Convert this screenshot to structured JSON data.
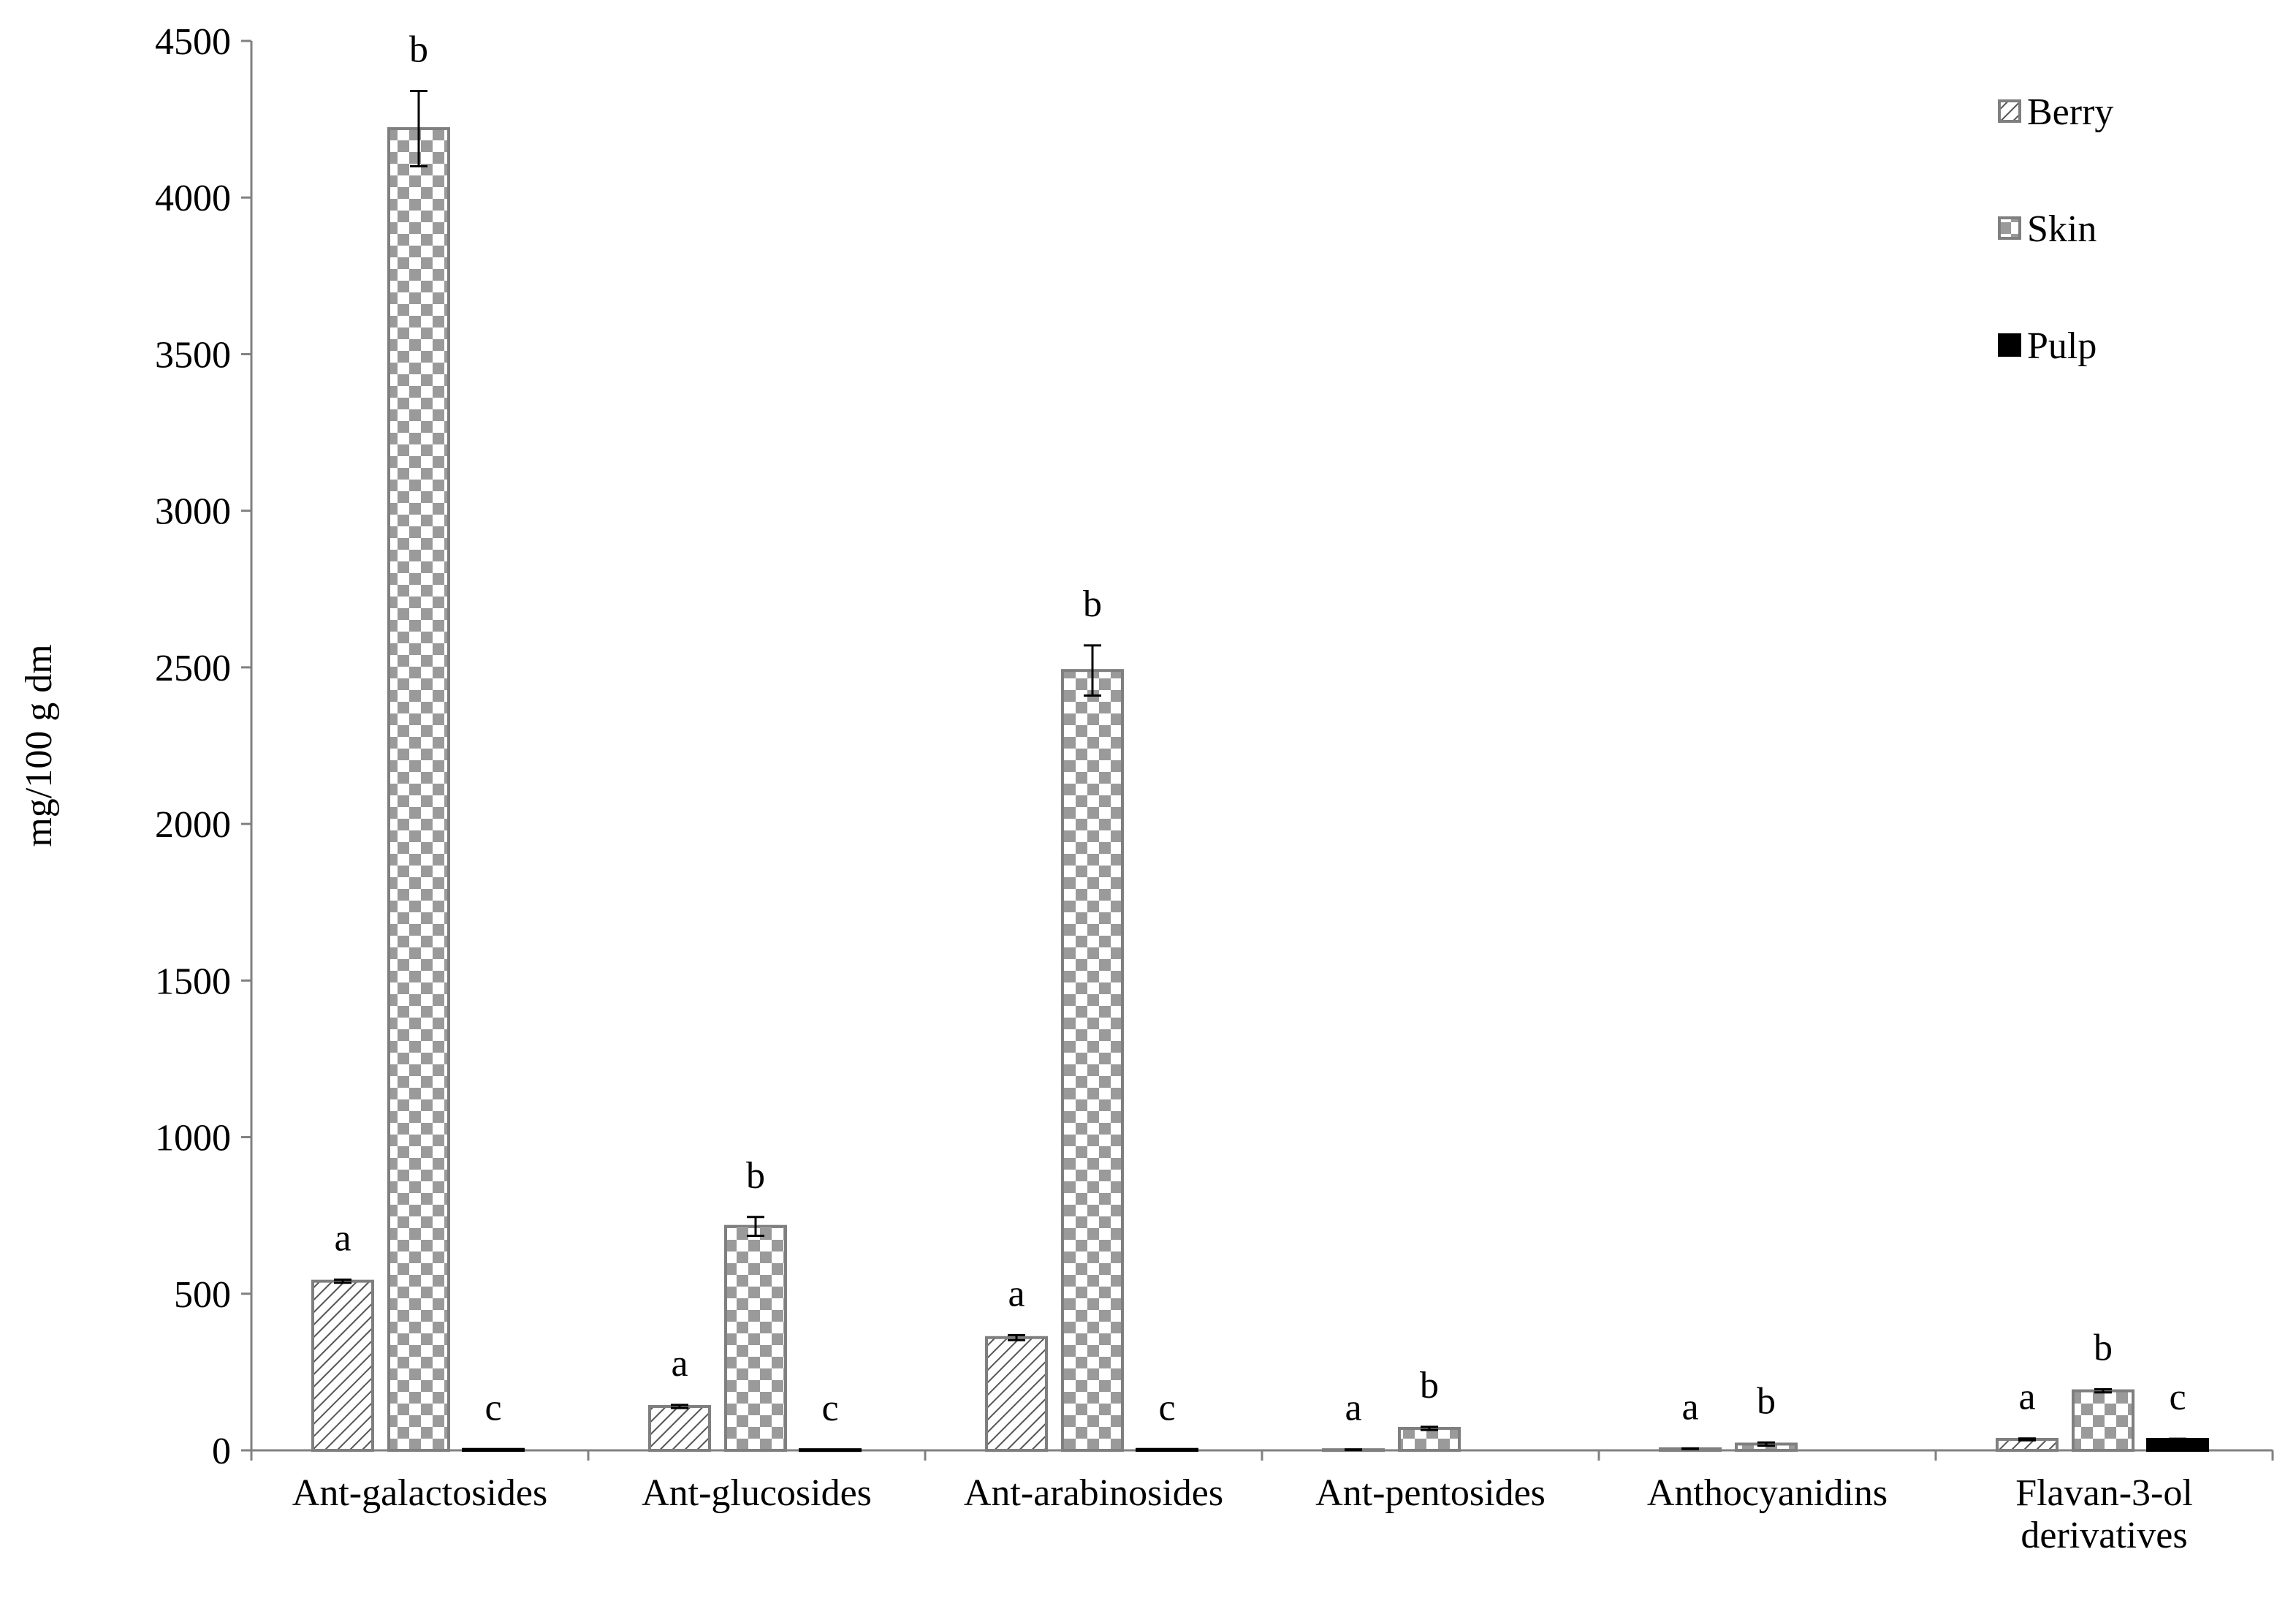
{
  "chart_data": {
    "type": "bar",
    "y_label": "mg/100 g dm",
    "categories": [
      "Ant-galactosides",
      "Ant-glucosides",
      "Ant-arabinosides",
      "Ant-pentosides",
      "Anthocyanidins",
      "Flavan-3-ol derivatives"
    ],
    "series": [
      {
        "name": "Berry",
        "color": "#7f7f7f",
        "pattern": "hatch",
        "values": [
          540,
          140,
          360,
          2,
          5,
          35
        ],
        "errors": [
          5,
          5,
          8,
          1,
          1,
          3
        ],
        "letters": [
          "a",
          "a",
          "a",
          "a",
          "a",
          "a"
        ]
      },
      {
        "name": "Skin",
        "color": "#7f7f7f",
        "pattern": "checker",
        "values": [
          4220,
          715,
          2490,
          70,
          20,
          190
        ],
        "errors": [
          120,
          30,
          80,
          5,
          5,
          5
        ],
        "letters": [
          "b",
          "b",
          "b",
          "b",
          "b",
          "b"
        ]
      },
      {
        "name": "Pulp",
        "color": "#000000",
        "pattern": "solid",
        "values": [
          3,
          2,
          3,
          null,
          null,
          35
        ],
        "errors": [
          0,
          0,
          0,
          null,
          null,
          2
        ],
        "letters": [
          "c",
          "c",
          "c",
          null,
          null,
          "c"
        ]
      }
    ],
    "ylim": [
      0,
      4500
    ],
    "yticks": [
      0,
      500,
      1000,
      1500,
      2000,
      2500,
      3000,
      3500,
      4000,
      4500
    ],
    "grid": false,
    "legend": "upper right"
  }
}
